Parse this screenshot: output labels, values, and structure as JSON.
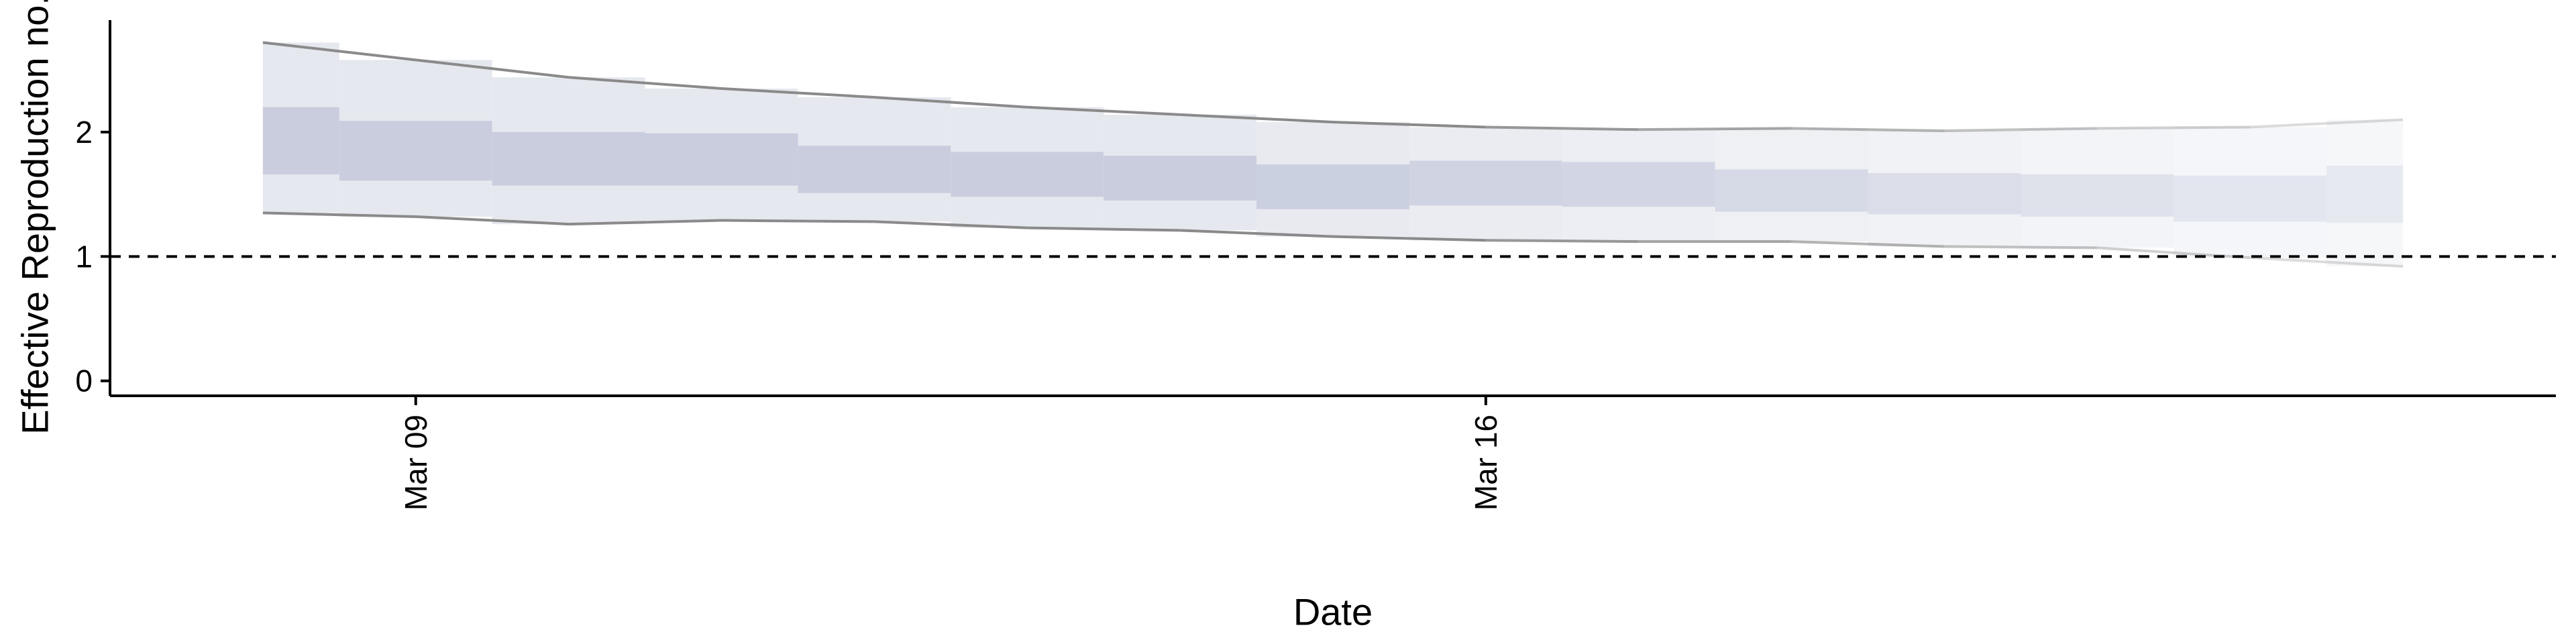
{
  "chart_data": {
    "type": "area",
    "title": "",
    "xlabel": "Date",
    "ylabel": "Effective Reproduction no.",
    "x_range": [
      "2020-03-07",
      "2020-03-23"
    ],
    "ylim": [
      -0.12,
      2.9
    ],
    "y_ticks": [
      0,
      1,
      2
    ],
    "x_ticks": [
      {
        "date": "2020-03-09",
        "label": "Mar 09"
      },
      {
        "date": "2020-03-16",
        "label": "Mar 16"
      }
    ],
    "reference_line": {
      "y": 1,
      "style": "dashed"
    },
    "grid": false,
    "legend": "none",
    "colors": {
      "band_outer": "#e6e8ef",
      "band_inner": "#c3c8db",
      "outer_line": "#8a8a8a",
      "reference": "#000000"
    },
    "dates": [
      "2020-03-08",
      "2020-03-09",
      "2020-03-10",
      "2020-03-11",
      "2020-03-12",
      "2020-03-13",
      "2020-03-14",
      "2020-03-15",
      "2020-03-16",
      "2020-03-17",
      "2020-03-18",
      "2020-03-19",
      "2020-03-20",
      "2020-03-21",
      "2020-03-22"
    ],
    "upper_outer": [
      2.72,
      2.58,
      2.44,
      2.35,
      2.28,
      2.2,
      2.14,
      2.08,
      2.04,
      2.02,
      2.03,
      2.01,
      2.03,
      2.04,
      2.1
    ],
    "upper_inner": [
      2.2,
      2.09,
      2.0,
      1.99,
      1.89,
      1.84,
      1.81,
      1.74,
      1.77,
      1.76,
      1.7,
      1.67,
      1.66,
      1.65,
      1.73
    ],
    "lower_inner": [
      1.66,
      1.61,
      1.57,
      1.57,
      1.51,
      1.48,
      1.45,
      1.38,
      1.41,
      1.4,
      1.36,
      1.34,
      1.32,
      1.28,
      1.27
    ],
    "lower_outer": [
      1.35,
      1.32,
      1.26,
      1.29,
      1.28,
      1.23,
      1.21,
      1.16,
      1.13,
      1.12,
      1.12,
      1.08,
      1.07,
      0.99,
      0.92
    ]
  }
}
